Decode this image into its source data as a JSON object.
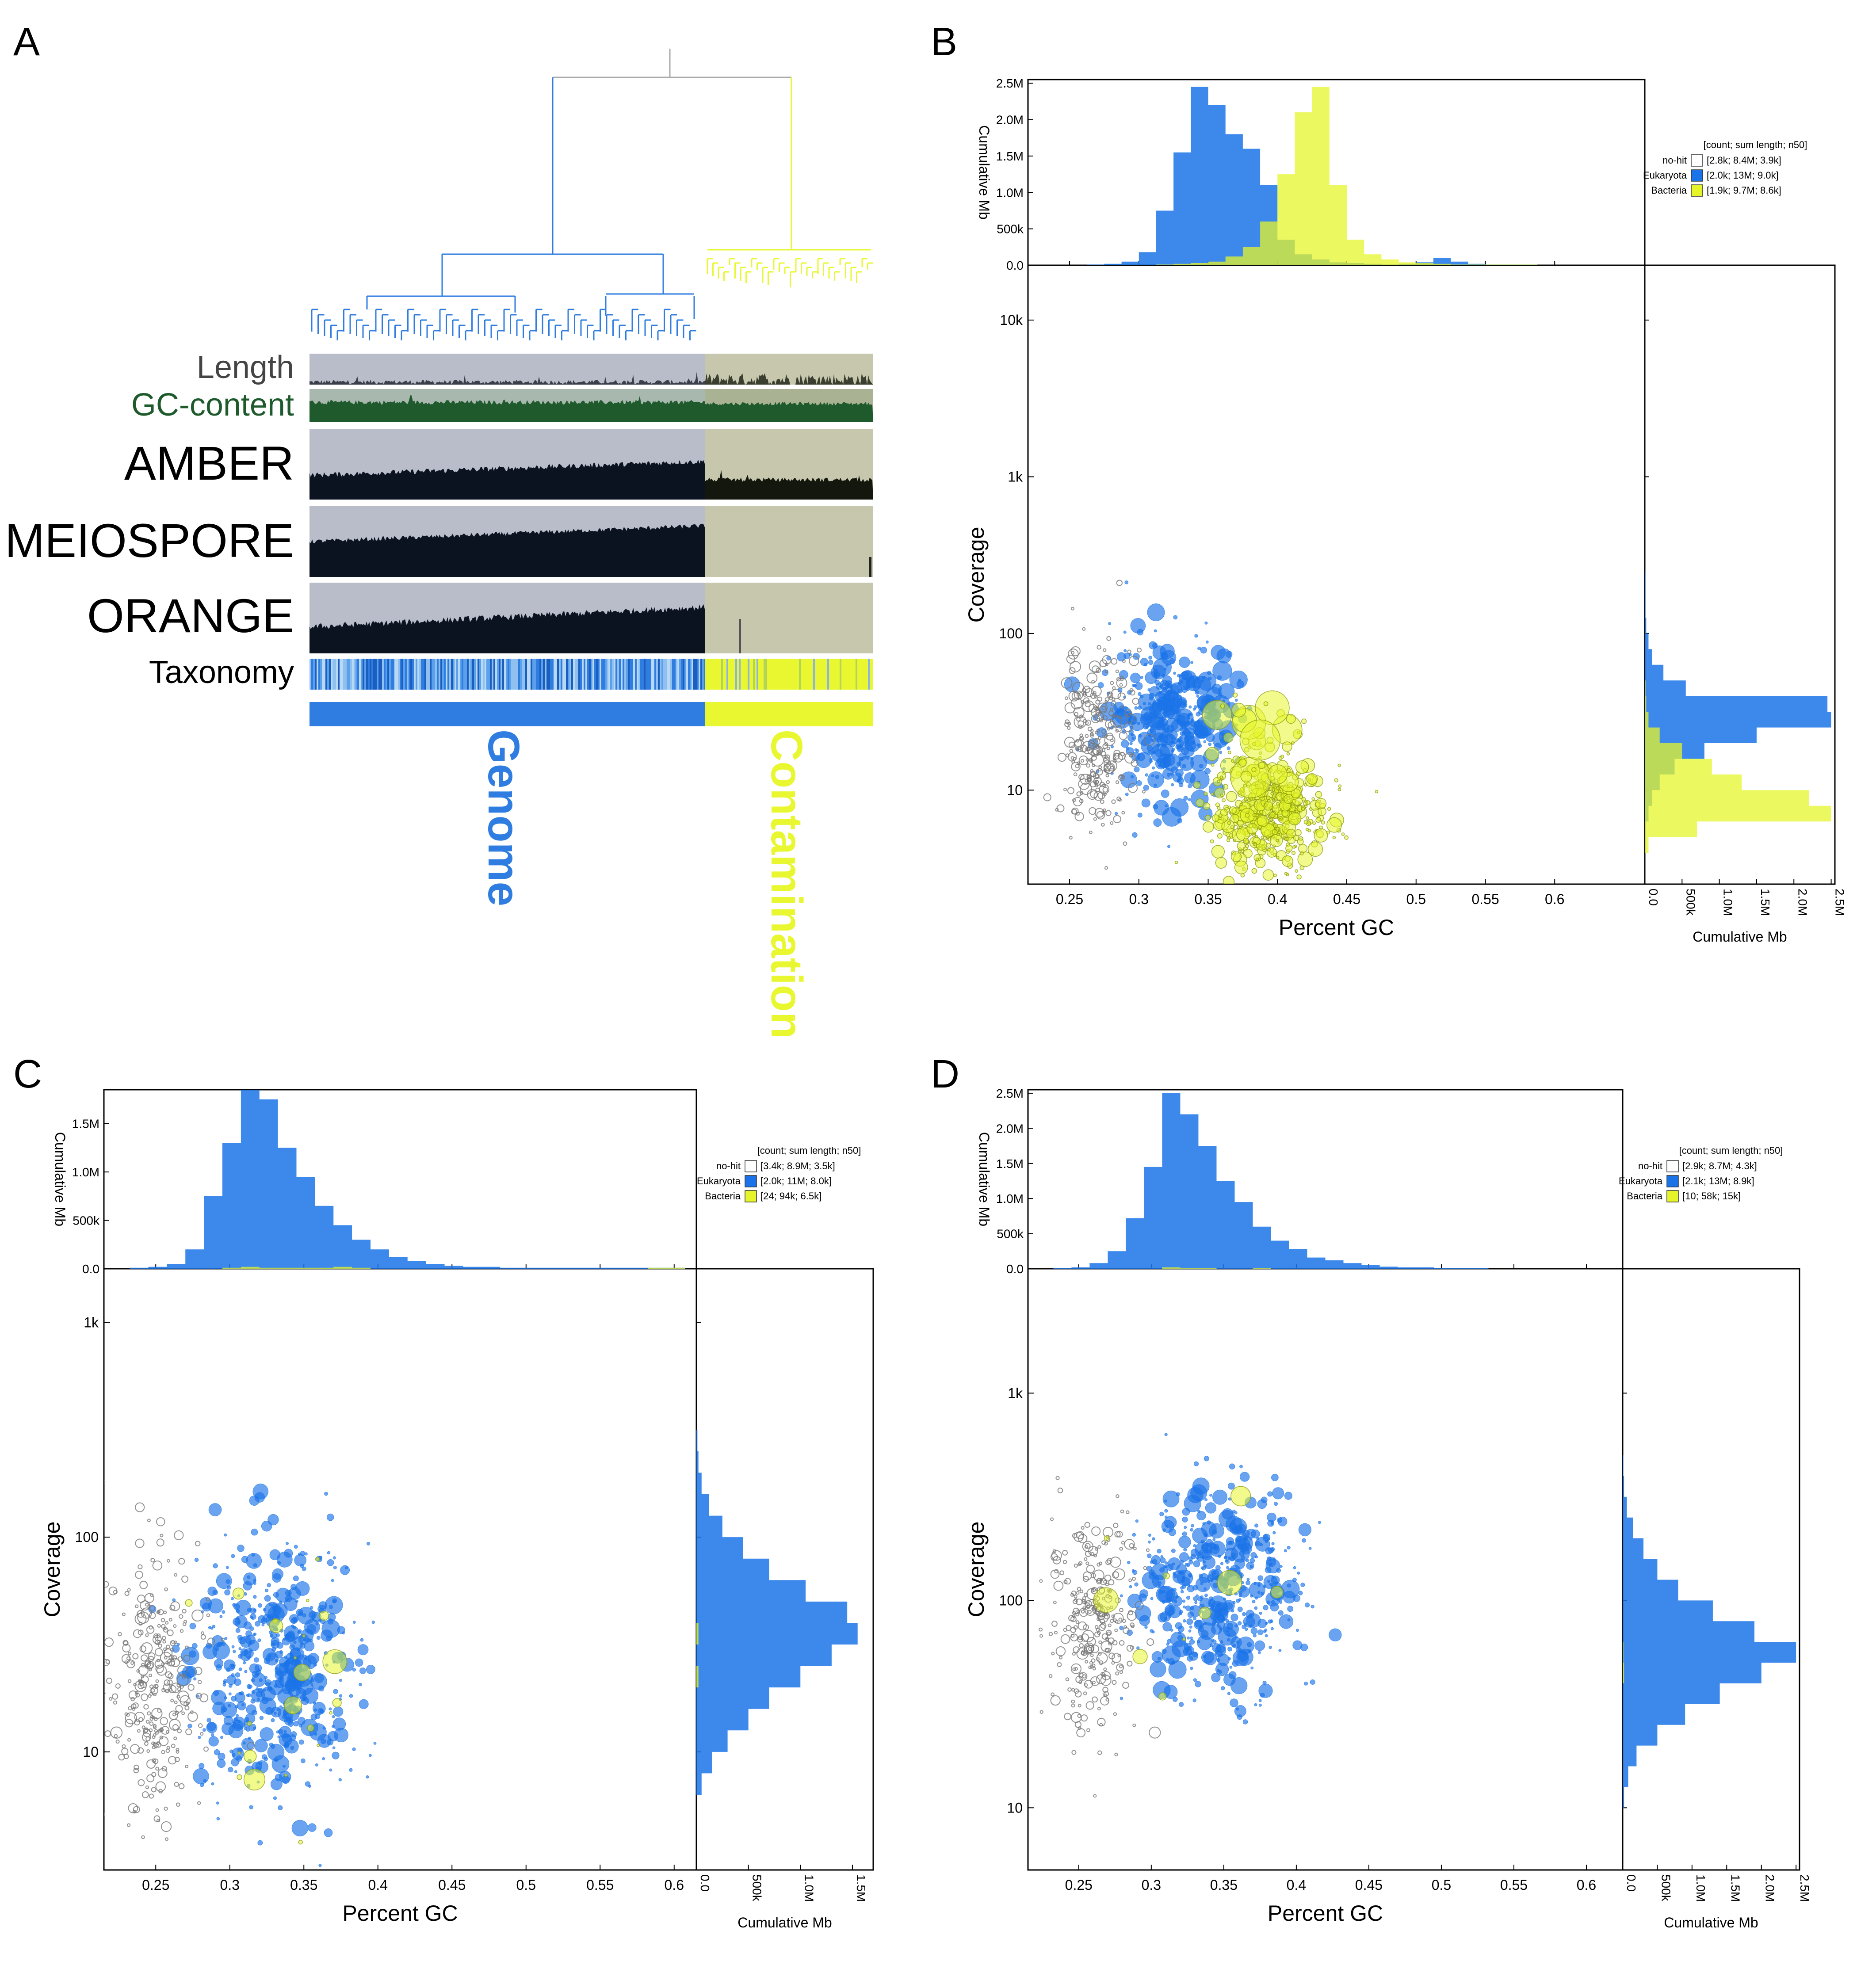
{
  "colors": {
    "genome": "#2f7de1",
    "contamination": "#e8f72f",
    "nohit": "#ffffff",
    "eukaryota": "#1a73e8",
    "bacteria": "#e6f52a",
    "track_bg": "#b9bcc9",
    "contam_bg": "#c6c7ad",
    "dark": "#0b1220",
    "gc_green": "#1e5a2c"
  },
  "panel_a": {
    "letter": "A",
    "tracks": [
      "Length",
      "GC-content",
      "AMBER",
      "MEIOSPORE",
      "ORANGE",
      "Taxonomy"
    ],
    "genome_label": "Genome",
    "contamination_label": "Contamination"
  },
  "chart_data": [
    {
      "panel": "B",
      "type": "scatter",
      "xlabel": "Percent GC",
      "ylabel": "Coverage",
      "x_ticks": [
        "0.25",
        "0.3",
        "0.35",
        "0.4",
        "0.45",
        "0.5",
        "0.55",
        "0.6"
      ],
      "y_ticks": [
        "10",
        "100",
        "1k",
        "10k"
      ],
      "y_scale": "log",
      "top_hist_ticks": [
        "0.0",
        "500k",
        "1.0M",
        "1.5M",
        "2.0M",
        "2.5M"
      ],
      "right_hist_ticks": [
        "0.0",
        "500k",
        "1.0M",
        "1.5M",
        "2.0M",
        "2.5M"
      ],
      "hist_label": "Cumulative Mb",
      "legend_header": "[count; sum length; n50]",
      "legend": [
        {
          "name": "no-hit",
          "stats": "[2.8k; 8.4M; 3.9k]"
        },
        {
          "name": "Eukaryota",
          "stats": "[2.0k; 13M; 9.0k]"
        },
        {
          "name": "Bacteria",
          "stats": "[1.9k; 9.7M; 8.6k]"
        }
      ],
      "top_hist": {
        "eukaryota": [
          0,
          0.01,
          0.02,
          0.05,
          0.18,
          0.75,
          1.55,
          2.45,
          2.2,
          1.8,
          1.6,
          1.1,
          0.35,
          0.15,
          0.08,
          0.04,
          0.03,
          0.02,
          0.01,
          0.02,
          0.04,
          0.1,
          0.05,
          0.02,
          0.01,
          0.01,
          0.01,
          0,
          0,
          0,
          0,
          0
        ],
        "bacteria": [
          0,
          0,
          0,
          0,
          0,
          0.01,
          0.02,
          0.03,
          0.05,
          0.12,
          0.25,
          0.6,
          1.25,
          2.1,
          2.45,
          1.1,
          0.35,
          0.15,
          0.08,
          0.04,
          0.03,
          0.02,
          0.01,
          0.01,
          0.01,
          0.01,
          0.01,
          0,
          0,
          0,
          0,
          0
        ],
        "x_start": 0.25,
        "x_step": 0.0125
      },
      "right_hist": {
        "eukaryota": [
          0,
          0,
          0,
          0.05,
          0.1,
          0.2,
          0.4,
          0.8,
          1.5,
          2.5,
          2.45,
          0.55,
          0.25,
          0.1,
          0.05,
          0.02,
          0.01,
          0.01,
          0.01,
          0,
          0,
          0
        ],
        "bacteria": [
          0,
          0.05,
          0.7,
          2.5,
          2.2,
          1.3,
          0.9,
          0.5,
          0.2,
          0.05,
          0.02,
          0.01,
          0,
          0,
          0,
          0,
          0,
          0,
          0,
          0,
          0,
          0
        ],
        "log_start": 0.5,
        "log_step": 0.1
      },
      "clusters": [
        {
          "kind": "eukaryota",
          "cx": 0.325,
          "cy": 28,
          "sx": 0.022,
          "sy": 0.25,
          "n": 420,
          "rmax": 16
        },
        {
          "kind": "nohit",
          "cx": 0.27,
          "cy": 20,
          "sx": 0.012,
          "sy": 0.3,
          "n": 280,
          "rmax": 9
        },
        {
          "kind": "bacteria",
          "cx": 0.395,
          "cy": 7,
          "sx": 0.02,
          "sy": 0.18,
          "n": 520,
          "rmax": 12
        },
        {
          "kind": "bacteria",
          "cx": 0.39,
          "cy": 18,
          "sx": 0.015,
          "sy": 0.15,
          "n": 40,
          "rmax": 38
        }
      ]
    },
    {
      "panel": "C",
      "type": "scatter",
      "xlabel": "Percent GC",
      "ylabel": "Coverage",
      "x_ticks": [
        "0.25",
        "0.3",
        "0.35",
        "0.4",
        "0.45",
        "0.5",
        "0.55",
        "0.6"
      ],
      "y_ticks": [
        "10",
        "100",
        "1k"
      ],
      "y_scale": "log",
      "top_hist_ticks": [
        "0.0",
        "500k",
        "1.0M",
        "1.5M"
      ],
      "right_hist_ticks": [
        "0.0",
        "500k",
        "1.0M",
        "1.5M"
      ],
      "hist_label": "Cumulative Mb",
      "legend_header": "[count; sum length; n50]",
      "legend": [
        {
          "name": "no-hit",
          "stats": "[3.4k; 8.9M; 3.5k]"
        },
        {
          "name": "Eukaryota",
          "stats": "[2.0k; 11M; 8.0k]"
        },
        {
          "name": "Bacteria",
          "stats": "[24; 94k; 6.5k]"
        }
      ],
      "top_hist": {
        "eukaryota": [
          0,
          0.01,
          0.02,
          0.05,
          0.2,
          0.75,
          1.3,
          1.85,
          1.75,
          1.25,
          0.95,
          0.65,
          0.45,
          0.3,
          0.2,
          0.12,
          0.08,
          0.05,
          0.03,
          0.02,
          0.02,
          0.01,
          0.01,
          0.01,
          0.01,
          0.01,
          0.01,
          0.01,
          0.01,
          0.01,
          0.01,
          0
        ],
        "bacteria": [
          0,
          0,
          0,
          0,
          0,
          0,
          0.01,
          0.02,
          0.01,
          0.01,
          0.01,
          0.01,
          0.02,
          0.01,
          0,
          0,
          0,
          0,
          0,
          0,
          0,
          0,
          0,
          0,
          0,
          0,
          0,
          0,
          0,
          0.01,
          0.01,
          0
        ],
        "x_start": 0.22,
        "x_step": 0.0125
      },
      "right_hist": {
        "eukaryota": [
          0,
          0,
          0.05,
          0.15,
          0.3,
          0.5,
          0.7,
          1.0,
          1.3,
          1.55,
          1.45,
          1.05,
          0.7,
          0.45,
          0.25,
          0.12,
          0.05,
          0.02,
          0.01,
          0
        ],
        "bacteria": [
          0,
          0,
          0,
          0,
          0,
          0,
          0,
          0.02,
          0,
          0.02,
          0,
          0,
          0,
          0,
          0,
          0,
          0,
          0,
          0,
          0
        ],
        "log_start": 0.6,
        "log_step": 0.1
      },
      "clusters": [
        {
          "kind": "eukaryota",
          "cx": 0.33,
          "cy": 25,
          "sx": 0.028,
          "sy": 0.3,
          "n": 520,
          "rmax": 16
        },
        {
          "kind": "nohit",
          "cx": 0.25,
          "cy": 20,
          "sx": 0.015,
          "sy": 0.3,
          "n": 320,
          "rmax": 9
        },
        {
          "kind": "bacteria",
          "cx": 0.335,
          "cy": 20,
          "sx": 0.03,
          "sy": 0.3,
          "n": 24,
          "rmax": 22
        }
      ]
    },
    {
      "panel": "D",
      "type": "scatter",
      "xlabel": "Percent GC",
      "ylabel": "Coverage",
      "x_ticks": [
        "0.25",
        "0.3",
        "0.35",
        "0.4",
        "0.45",
        "0.5",
        "0.55",
        "0.6"
      ],
      "y_ticks": [
        "10",
        "100",
        "1k"
      ],
      "y_scale": "log",
      "top_hist_ticks": [
        "0.0",
        "500k",
        "1.0M",
        "1.5M",
        "2.0M",
        "2.5M"
      ],
      "right_hist_ticks": [
        "0.0",
        "500k",
        "1.0M",
        "1.5M",
        "2.0M",
        "2.5M"
      ],
      "hist_label": "Cumulative Mb",
      "legend_header": "[count; sum length; n50]",
      "legend": [
        {
          "name": "no-hit",
          "stats": "[2.9k; 8.7M; 4.3k]"
        },
        {
          "name": "Eukaryota",
          "stats": "[2.1k; 13M; 8.9k]"
        },
        {
          "name": "Bacteria",
          "stats": "[10; 58k; 15k]"
        }
      ],
      "top_hist": {
        "eukaryota": [
          0,
          0.01,
          0.02,
          0.08,
          0.25,
          0.72,
          1.45,
          2.5,
          2.2,
          1.75,
          1.25,
          0.95,
          0.6,
          0.4,
          0.28,
          0.16,
          0.12,
          0.08,
          0.05,
          0.03,
          0.02,
          0.02,
          0.01,
          0.01,
          0.01,
          0,
          0,
          0,
          0,
          0,
          0,
          0
        ],
        "bacteria": [
          0,
          0,
          0,
          0,
          0,
          0,
          0,
          0.02,
          0.01,
          0.01,
          0,
          0,
          0.01,
          0,
          0,
          0,
          0,
          0,
          0,
          0,
          0,
          0,
          0,
          0,
          0,
          0,
          0,
          0,
          0,
          0,
          0,
          0
        ],
        "x_start": 0.22,
        "x_step": 0.0125
      },
      "right_hist": {
        "eukaryota": [
          0,
          0.02,
          0.08,
          0.2,
          0.5,
          0.9,
          1.4,
          2.0,
          2.5,
          1.9,
          1.3,
          0.8,
          0.5,
          0.3,
          0.15,
          0.06,
          0.02,
          0.01,
          0,
          0
        ],
        "bacteria": [
          0,
          0,
          0,
          0,
          0,
          0,
          0,
          0.02,
          0.01,
          0,
          0,
          0,
          0,
          0,
          0,
          0,
          0,
          0,
          0,
          0
        ],
        "log_start": 0.9,
        "log_step": 0.1
      },
      "clusters": [
        {
          "kind": "eukaryota",
          "cx": 0.345,
          "cy": 110,
          "sx": 0.028,
          "sy": 0.25,
          "n": 520,
          "rmax": 16
        },
        {
          "kind": "nohit",
          "cx": 0.26,
          "cy": 80,
          "sx": 0.015,
          "sy": 0.25,
          "n": 300,
          "rmax": 9
        },
        {
          "kind": "bacteria",
          "cx": 0.32,
          "cy": 100,
          "sx": 0.03,
          "sy": 0.2,
          "n": 10,
          "rmax": 26
        }
      ]
    }
  ]
}
